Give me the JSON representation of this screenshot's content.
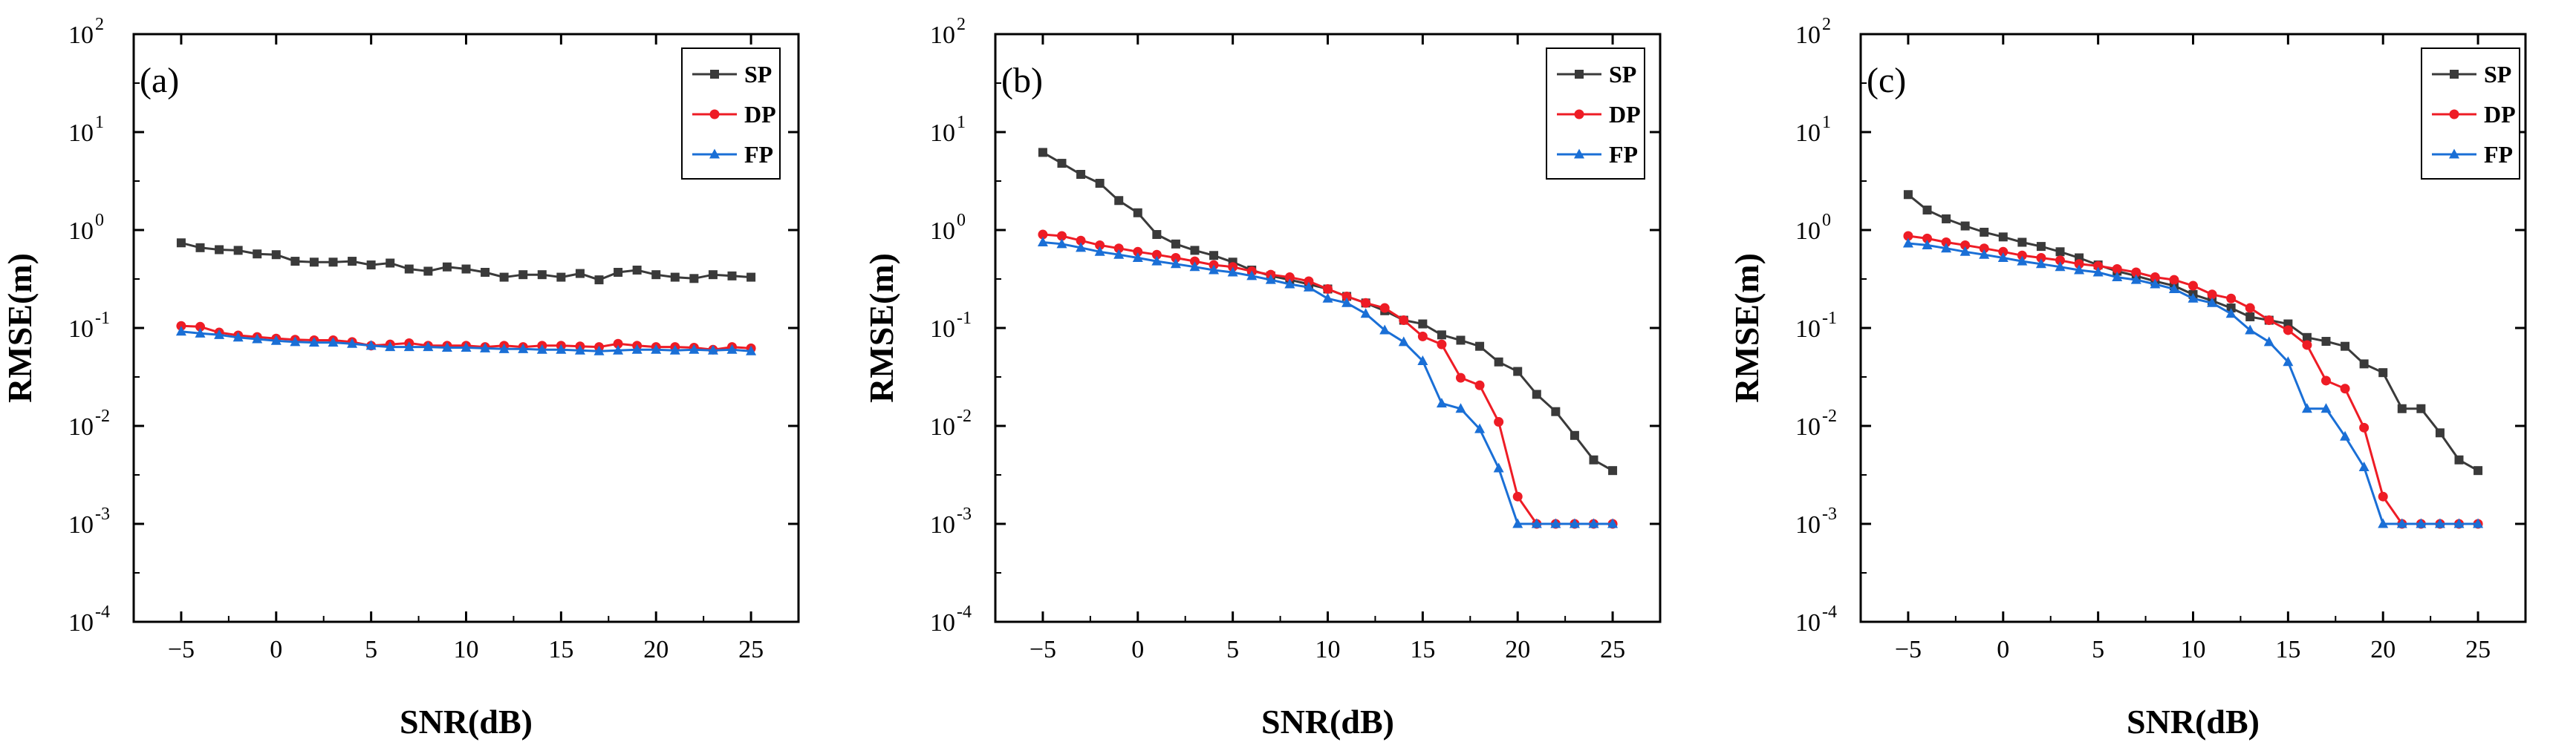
{
  "figure": {
    "xlabel": "SNR(dB)",
    "ylabel": "RMSE(m)",
    "xticks": [
      "−5",
      "0",
      "5",
      "10",
      "15",
      "20",
      "25"
    ],
    "yticks": [
      {
        "base": "10",
        "exp": "2"
      },
      {
        "base": "10",
        "exp": "1"
      },
      {
        "base": "10",
        "exp": "0"
      },
      {
        "base": "10",
        "exp": "-1"
      },
      {
        "base": "10",
        "exp": "-2"
      },
      {
        "base": "10",
        "exp": "-3"
      },
      {
        "base": "10",
        "exp": "-4"
      }
    ],
    "colors": {
      "SP": "#3a3a3a",
      "DP": "#ee1c25",
      "FP": "#1a6fd6"
    }
  },
  "chart_data": [
    {
      "type": "line",
      "label": "(a)",
      "xlabel": "SNR(dB)",
      "ylabel": "RMSE(m)",
      "yscale": "log",
      "xlim": [
        -7.5,
        27.5
      ],
      "ylim": [
        0.0001,
        100
      ],
      "x": [
        -5,
        -4,
        -3,
        -2,
        -1,
        0,
        1,
        2,
        3,
        4,
        5,
        6,
        7,
        8,
        9,
        10,
        11,
        12,
        13,
        14,
        15,
        16,
        17,
        18,
        19,
        20,
        21,
        22,
        23,
        24,
        25
      ],
      "legend": "top-right",
      "series": [
        {
          "name": "SP",
          "marker": "square",
          "values": [
            0.74,
            0.66,
            0.63,
            0.62,
            0.57,
            0.56,
            0.48,
            0.47,
            0.47,
            0.48,
            0.44,
            0.46,
            0.4,
            0.38,
            0.42,
            0.4,
            0.37,
            0.33,
            0.35,
            0.35,
            0.33,
            0.36,
            0.31,
            0.37,
            0.39,
            0.35,
            0.33,
            0.32,
            0.35,
            0.34,
            0.33
          ]
        },
        {
          "name": "DP",
          "marker": "circle",
          "values": [
            0.105,
            0.103,
            0.09,
            0.084,
            0.081,
            0.078,
            0.076,
            0.075,
            0.075,
            0.072,
            0.066,
            0.068,
            0.07,
            0.066,
            0.066,
            0.066,
            0.064,
            0.066,
            0.064,
            0.066,
            0.066,
            0.065,
            0.064,
            0.069,
            0.066,
            0.064,
            0.064,
            0.063,
            0.06,
            0.064,
            0.062
          ]
        },
        {
          "name": "FP",
          "marker": "triangle",
          "values": [
            0.092,
            0.088,
            0.085,
            0.08,
            0.077,
            0.074,
            0.072,
            0.071,
            0.071,
            0.069,
            0.066,
            0.064,
            0.064,
            0.064,
            0.063,
            0.063,
            0.062,
            0.061,
            0.061,
            0.06,
            0.06,
            0.059,
            0.058,
            0.059,
            0.06,
            0.06,
            0.059,
            0.06,
            0.059,
            0.06,
            0.058
          ]
        }
      ]
    },
    {
      "type": "line",
      "label": "(b)",
      "xlabel": "SNR(dB)",
      "ylabel": "RMSE(m)",
      "yscale": "log",
      "xlim": [
        -7.5,
        27.5
      ],
      "ylim": [
        0.0001,
        100
      ],
      "x": [
        -5,
        -4,
        -3,
        -2,
        -1,
        0,
        1,
        2,
        3,
        4,
        5,
        6,
        7,
        8,
        9,
        10,
        11,
        12,
        13,
        14,
        15,
        16,
        17,
        18,
        19,
        20,
        21,
        22,
        23,
        24,
        25
      ],
      "legend": "top-right",
      "series": [
        {
          "name": "SP",
          "marker": "square",
          "values": [
            6.2,
            4.8,
            3.7,
            3.0,
            2.0,
            1.5,
            0.9,
            0.72,
            0.62,
            0.55,
            0.47,
            0.39,
            0.34,
            0.31,
            0.28,
            0.25,
            0.21,
            0.18,
            0.15,
            0.12,
            0.11,
            0.085,
            0.075,
            0.065,
            0.045,
            0.036,
            0.021,
            0.014,
            0.008,
            0.0045,
            0.0035
          ]
        },
        {
          "name": "DP",
          "marker": "circle",
          "values": [
            0.9,
            0.87,
            0.78,
            0.7,
            0.65,
            0.6,
            0.56,
            0.52,
            0.48,
            0.44,
            0.42,
            0.38,
            0.35,
            0.33,
            0.3,
            0.25,
            0.21,
            0.18,
            0.16,
            0.12,
            0.082,
            0.068,
            0.031,
            0.026,
            0.011,
            0.0019,
            0.001,
            0.001,
            0.001,
            0.001,
            0.001
          ]
        },
        {
          "name": "FP",
          "marker": "triangle",
          "values": [
            0.75,
            0.72,
            0.66,
            0.6,
            0.56,
            0.52,
            0.48,
            0.45,
            0.42,
            0.39,
            0.37,
            0.34,
            0.31,
            0.28,
            0.26,
            0.2,
            0.18,
            0.14,
            0.095,
            0.072,
            0.046,
            0.017,
            0.015,
            0.0093,
            0.0037,
            0.001,
            0.001,
            0.001,
            0.001,
            0.001,
            0.001
          ]
        }
      ]
    },
    {
      "type": "line",
      "label": "(c)",
      "xlabel": "SNR(dB)",
      "ylabel": "RMSE(m)",
      "yscale": "log",
      "xlim": [
        -7.5,
        27.5
      ],
      "ylim": [
        0.0001,
        100
      ],
      "x": [
        -5,
        -4,
        -3,
        -2,
        -1,
        0,
        1,
        2,
        3,
        4,
        5,
        6,
        7,
        8,
        9,
        10,
        11,
        12,
        13,
        14,
        15,
        16,
        17,
        18,
        19,
        20,
        21,
        22,
        23,
        24,
        25
      ],
      "legend": "top-right",
      "series": [
        {
          "name": "SP",
          "marker": "square",
          "values": [
            2.3,
            1.6,
            1.3,
            1.1,
            0.95,
            0.85,
            0.75,
            0.68,
            0.6,
            0.52,
            0.44,
            0.38,
            0.34,
            0.3,
            0.27,
            0.22,
            0.19,
            0.16,
            0.13,
            0.12,
            0.11,
            0.08,
            0.073,
            0.065,
            0.043,
            0.035,
            0.015,
            0.015,
            0.0085,
            0.0045,
            0.0035
          ]
        },
        {
          "name": "DP",
          "marker": "circle",
          "values": [
            0.87,
            0.82,
            0.75,
            0.7,
            0.65,
            0.6,
            0.55,
            0.52,
            0.49,
            0.45,
            0.43,
            0.4,
            0.37,
            0.33,
            0.31,
            0.27,
            0.22,
            0.2,
            0.16,
            0.12,
            0.095,
            0.067,
            0.029,
            0.024,
            0.0096,
            0.0019,
            0.001,
            0.001,
            0.001,
            0.001,
            0.001
          ]
        },
        {
          "name": "FP",
          "marker": "triangle",
          "values": [
            0.73,
            0.7,
            0.65,
            0.6,
            0.56,
            0.52,
            0.48,
            0.45,
            0.42,
            0.39,
            0.37,
            0.33,
            0.31,
            0.28,
            0.25,
            0.2,
            0.18,
            0.14,
            0.095,
            0.072,
            0.045,
            0.015,
            0.015,
            0.0078,
            0.0038,
            0.001,
            0.001,
            0.001,
            0.001,
            0.001,
            0.001
          ]
        }
      ]
    }
  ]
}
